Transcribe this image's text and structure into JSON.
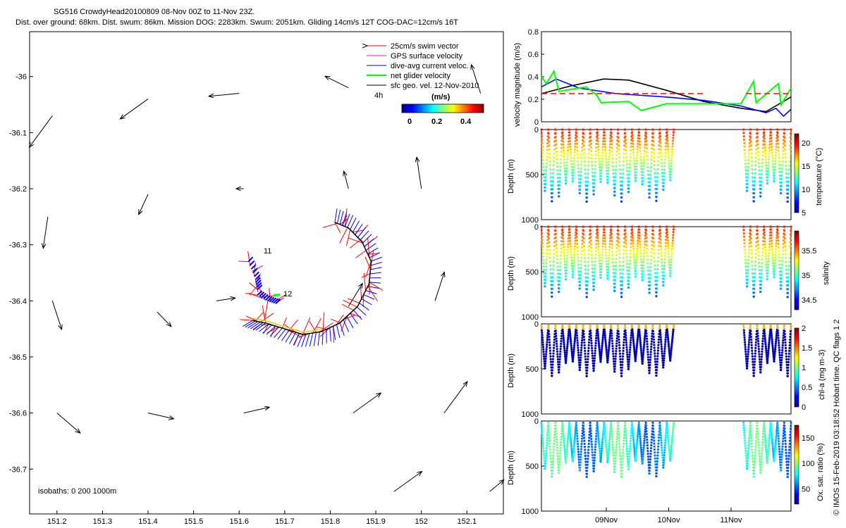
{
  "header": {
    "line1": "SG516 CrowdyHead20100809 08-Nov 00Z to 11-Nov 23Z.",
    "line2": "Dist. over ground: 68km. Dist. swum: 86km. Mission DOG: 2283km. Swum: 2051km. Gliding 14cm/s 12T COG-DAC=12cm/s 16T"
  },
  "credit": "© IMOS 15-Feb-2019 03:18:52 Hobart time. QC flags 1  2",
  "colors": {
    "swim": "#ff0000",
    "gps": "#ff00ff",
    "dac": "#0000ff",
    "net": "#00ff00",
    "geo": "#000000",
    "track": "#000000",
    "velRef": "#ff0000"
  },
  "chart_data": [
    {
      "type": "scatter",
      "title": "",
      "xlim": [
        151.14,
        152.18
      ],
      "ylim": [
        -36.78,
        -35.92
      ],
      "xticks": [
        "151.2",
        "151.3",
        "151.4",
        "151.5",
        "151.6",
        "151.7",
        "151.8",
        "151.9",
        "152",
        "152.1"
      ],
      "yticks": [
        "-36",
        "-36.1",
        "-36.2",
        "-36.3",
        "-36.4",
        "-36.5",
        "-36.6",
        "-36.7"
      ],
      "legend": {
        "items": [
          "25cm/s swim vector",
          "GPS surface velocity",
          "dive-avg current veloc.",
          "net glider velocity",
          "sfc geo. vel. 12-Nov-2010"
        ],
        "placement": "top-right",
        "tag": "4h"
      },
      "colorbar": {
        "label": "(m/s)",
        "ticks": [
          "0",
          "0.2",
          "0.4"
        ],
        "range": [
          0,
          0.5
        ]
      },
      "isobaths": "isobaths: 0   200  1000m",
      "annotations": [
        "11",
        "12"
      ],
      "track": [
        [
          151.63,
          -36.435
        ],
        [
          151.66,
          -36.44
        ],
        [
          151.7,
          -36.45
        ],
        [
          151.74,
          -36.46
        ],
        [
          151.78,
          -36.455
        ],
        [
          151.82,
          -36.44
        ],
        [
          151.86,
          -36.41
        ],
        [
          151.885,
          -36.37
        ],
        [
          151.89,
          -36.33
        ],
        [
          151.87,
          -36.295
        ],
        [
          151.84,
          -36.27
        ],
        [
          151.81,
          -36.26
        ]
      ],
      "dac_branch": [
        [
          151.62,
          -36.33
        ],
        [
          151.635,
          -36.36
        ],
        [
          151.64,
          -36.38
        ]
      ],
      "dac_branch2": [
        [
          151.64,
          -36.39
        ],
        [
          151.66,
          -36.4
        ],
        [
          151.68,
          -36.405
        ]
      ],
      "geo_vectors": [
        [
          151.19,
          -36.07,
          -0.05,
          -0.055
        ],
        [
          151.4,
          -36.04,
          -0.06,
          -0.035
        ],
        [
          151.6,
          -36.03,
          -0.065,
          -0.005
        ],
        [
          151.84,
          -36.02,
          -0.05,
          0.02
        ],
        [
          152.13,
          -36.03,
          -0.02,
          0.05
        ],
        [
          151.18,
          -36.25,
          -0.01,
          -0.055
        ],
        [
          151.4,
          -36.21,
          -0.02,
          -0.035
        ],
        [
          151.61,
          -36.2,
          -0.015,
          0.0
        ],
        [
          151.84,
          -36.2,
          -0.01,
          0.03
        ],
        [
          152.0,
          -36.2,
          -0.01,
          0.055
        ],
        [
          151.19,
          -36.4,
          0.02,
          -0.05
        ],
        [
          151.42,
          -36.42,
          0.03,
          -0.025
        ],
        [
          151.55,
          -36.4,
          0.04,
          0.005
        ],
        [
          151.84,
          -36.41,
          0.03,
          0.04
        ],
        [
          152.03,
          -36.4,
          0.02,
          0.05
        ],
        [
          151.2,
          -36.6,
          0.05,
          -0.035
        ],
        [
          151.4,
          -36.6,
          0.055,
          -0.01
        ],
        [
          151.61,
          -36.6,
          0.055,
          0.01
        ],
        [
          151.85,
          -36.6,
          0.06,
          0.035
        ],
        [
          152.05,
          -36.6,
          0.05,
          0.055
        ],
        [
          151.94,
          -36.74,
          0.06,
          0.035
        ],
        [
          152.15,
          -36.74,
          0.03,
          0.02
        ]
      ]
    },
    {
      "type": "line",
      "ylabel": "velocity magnitude (m/s)",
      "ylim": [
        0,
        0.8
      ],
      "yticks": [
        "0",
        "0.2",
        "0.4",
        "0.6",
        "0.8"
      ],
      "series": [
        {
          "color": "black",
          "points": [
            [
              0,
              0.25
            ],
            [
              0.12,
              0.32
            ],
            [
              0.25,
              0.38
            ],
            [
              0.35,
              0.37
            ],
            [
              0.5,
              0.28
            ],
            [
              0.65,
              0.18
            ],
            [
              0.8,
              0.12
            ],
            [
              0.9,
              0.09
            ],
            [
              1.0,
              0.22
            ]
          ]
        },
        {
          "color": "blue",
          "points": [
            [
              0,
              0.31
            ],
            [
              0.06,
              0.38
            ],
            [
              0.15,
              0.3
            ],
            [
              0.3,
              0.25
            ],
            [
              0.5,
              0.22
            ],
            [
              0.65,
              0.19
            ],
            [
              0.8,
              0.14
            ],
            [
              0.9,
              0.08
            ],
            [
              0.94,
              0.12
            ],
            [
              0.97,
              0.05
            ],
            [
              1.0,
              0.11
            ]
          ]
        },
        {
          "color": "lime",
          "points": [
            [
              0,
              0.4
            ],
            [
              0.02,
              0.34
            ],
            [
              0.05,
              0.45
            ],
            [
              0.07,
              0.27
            ],
            [
              0.18,
              0.31
            ],
            [
              0.22,
              0.24
            ],
            [
              0.24,
              0.17
            ],
            [
              0.35,
              0.18
            ],
            [
              0.4,
              0.1
            ],
            [
              0.5,
              0.16
            ],
            [
              0.6,
              0.16
            ],
            [
              0.8,
              0.16
            ],
            [
              0.85,
              0.36
            ],
            [
              0.86,
              0.17
            ],
            [
              0.95,
              0.34
            ],
            [
              0.96,
              0.15
            ],
            [
              1.0,
              0.3
            ]
          ]
        },
        {
          "color": "red-dashed",
          "points": [
            [
              0,
              0.25
            ],
            [
              0.65,
              0.25
            ]
          ]
        },
        {
          "color": "red-dashed",
          "points": [
            [
              0.82,
              0.25
            ],
            [
              1.0,
              0.25
            ]
          ]
        }
      ]
    },
    {
      "type": "scatter",
      "ylabel": "Depth (m)",
      "clabel": "temperature (°C)",
      "yticks": [
        "0",
        "500",
        "1000"
      ],
      "cticks": [
        "5",
        "10",
        "15",
        "20"
      ],
      "crange": [
        5,
        22
      ],
      "ranges": [
        [
          0.0,
          0.53
        ],
        [
          0.81,
          1.0
        ]
      ],
      "maxdepth": 800,
      "mindepth": 0,
      "cycles": 17,
      "colormap": "temperature"
    },
    {
      "type": "scatter",
      "ylabel": "Depth (m)",
      "clabel": "salinity",
      "yticks": [
        "0",
        "500",
        "1000"
      ],
      "cticks": [
        "34.5",
        "35",
        "35.5"
      ],
      "crange": [
        34.3,
        35.9
      ],
      "ranges": [
        [
          0.0,
          0.53
        ],
        [
          0.81,
          1.0
        ]
      ],
      "maxdepth": 780,
      "mindepth": 0,
      "cycles": 17,
      "colormap": "salinity"
    },
    {
      "type": "scatter",
      "ylabel": "Depth (m)",
      "clabel": "chl-a (mg m-3)",
      "yticks": [
        "0",
        "500",
        "1000"
      ],
      "cticks": [
        "0",
        "0.5",
        "1",
        "1.5",
        "2"
      ],
      "crange": [
        0,
        2
      ],
      "ranges": [
        [
          0.0,
          0.53
        ],
        [
          0.81,
          1.0
        ]
      ],
      "maxdepth": 580,
      "mindepth": 20,
      "cycles": 17,
      "colormap": "chl"
    },
    {
      "type": "scatter",
      "ylabel": "Depth (m)",
      "clabel": "Ox. sat. ratio (%)",
      "yticks": [
        "0",
        "500",
        "1000"
      ],
      "cticks": [
        "50",
        "100",
        "150"
      ],
      "crange": [
        20,
        175
      ],
      "ranges": [
        [
          0.0,
          0.53
        ],
        [
          0.81,
          1.0
        ]
      ],
      "maxdepth": 620,
      "mindepth": 20,
      "cycles": 17,
      "colormap": "ox"
    }
  ],
  "time_axis": {
    "ticks": [
      "09Nov",
      "10Nov",
      "11Nov"
    ]
  }
}
